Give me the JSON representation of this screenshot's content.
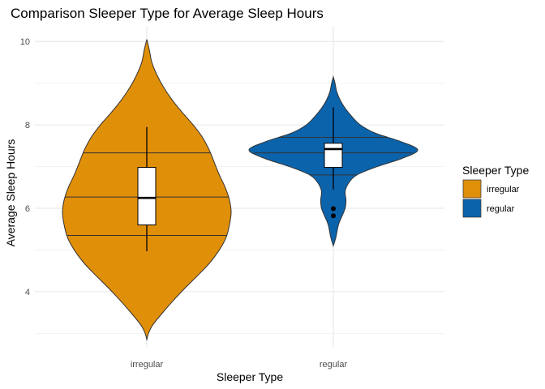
{
  "chart_data": {
    "type": "violin",
    "title": "Comparison Sleeper Type for Average Sleep Hours",
    "xlabel": "Sleeper Type",
    "ylabel": "Average Sleep Hours",
    "categories": [
      "irregular",
      "regular"
    ],
    "y_ticks": [
      4,
      6,
      8,
      10
    ],
    "ylim": [
      2.9,
      10.3
    ],
    "grid": true,
    "legend": {
      "title": "Sleeper Type",
      "placement": "right",
      "entries": [
        {
          "label": "irregular",
          "color": "#E08F09"
        },
        {
          "label": "regular",
          "color": "#0B63AC"
        }
      ]
    },
    "series": [
      {
        "category": "irregular",
        "color": "#E08F09",
        "violin_range": [
          2.85,
          10.05
        ],
        "density_profile": [
          [
            2.85,
            0.0
          ],
          [
            3.0,
            0.02
          ],
          [
            3.2,
            0.07
          ],
          [
            3.5,
            0.19
          ],
          [
            3.8,
            0.32
          ],
          [
            4.1,
            0.46
          ],
          [
            4.4,
            0.61
          ],
          [
            4.7,
            0.75
          ],
          [
            5.0,
            0.86
          ],
          [
            5.3,
            0.94
          ],
          [
            5.6,
            0.98
          ],
          [
            5.9,
            1.0
          ],
          [
            6.2,
            0.98
          ],
          [
            6.5,
            0.93
          ],
          [
            6.8,
            0.86
          ],
          [
            7.1,
            0.8
          ],
          [
            7.4,
            0.74
          ],
          [
            7.7,
            0.66
          ],
          [
            8.0,
            0.55
          ],
          [
            8.3,
            0.42
          ],
          [
            8.6,
            0.3
          ],
          [
            8.9,
            0.2
          ],
          [
            9.2,
            0.12
          ],
          [
            9.5,
            0.06
          ],
          [
            9.8,
            0.03
          ],
          [
            10.05,
            0.0
          ]
        ],
        "quantiles": [
          5.35,
          6.27,
          7.33
        ],
        "box": {
          "whisker_low": 4.97,
          "q1": 5.6,
          "median": 6.25,
          "q3": 6.98,
          "whisker_high": 7.95
        },
        "outliers": []
      },
      {
        "category": "regular",
        "color": "#0B63AC",
        "violin_range": [
          5.1,
          9.15
        ],
        "density_profile": [
          [
            5.1,
            0.0
          ],
          [
            5.3,
            0.03
          ],
          [
            5.6,
            0.06
          ],
          [
            5.8,
            0.1
          ],
          [
            6.0,
            0.14
          ],
          [
            6.2,
            0.15
          ],
          [
            6.4,
            0.14
          ],
          [
            6.6,
            0.18
          ],
          [
            6.8,
            0.28
          ],
          [
            7.0,
            0.52
          ],
          [
            7.2,
            0.82
          ],
          [
            7.4,
            1.0
          ],
          [
            7.6,
            0.8
          ],
          [
            7.8,
            0.5
          ],
          [
            8.0,
            0.32
          ],
          [
            8.2,
            0.22
          ],
          [
            8.4,
            0.14
          ],
          [
            8.6,
            0.08
          ],
          [
            8.8,
            0.04
          ],
          [
            9.0,
            0.02
          ],
          [
            9.15,
            0.0
          ]
        ],
        "quantiles": [
          6.8,
          7.33,
          7.7
        ],
        "box": {
          "whisker_low": 6.45,
          "q1": 6.98,
          "median": 7.42,
          "q3": 7.56,
          "whisker_high": 8.42
        },
        "outliers": [
          5.82,
          5.99
        ]
      }
    ]
  }
}
